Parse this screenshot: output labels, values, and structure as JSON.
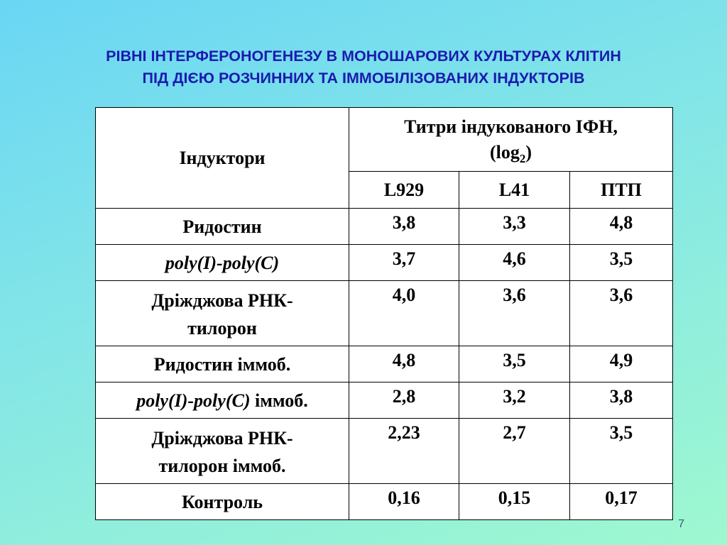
{
  "title": {
    "line1": "РІВНІ ІНТЕРФЕРОНОГЕНЕЗУ В МОНОШАРОВИХ КУЛЬТУРАХ КЛІТИН",
    "line2": "ПІД ДІЄЮ РОЗЧИННИХ ТА ІММОБІЛІЗОВАНИХ ІНДУКТОРІВ"
  },
  "table": {
    "header_inductors": "Індуктори",
    "header_titers_line1": "Титри індукованого ІФН,",
    "header_titers_open": "(log",
    "header_titers_sub": "2",
    "header_titers_close": ")",
    "columns": [
      "L929",
      "L41",
      "ПТП"
    ],
    "rows": [
      {
        "label": "Ридостин",
        "values": [
          "3,8",
          "3,3",
          "4,8"
        ]
      },
      {
        "label_italic": "poly(I)-poly(C)",
        "values": [
          "3,7",
          "4,6",
          "3,5"
        ]
      },
      {
        "label_line1": "Дріжджова РНК-",
        "label_line2": "тилорон",
        "values": [
          "4,0",
          "3,6",
          "3,6"
        ]
      },
      {
        "label": "Ридостин іммоб.",
        "values": [
          "4,8",
          "3,5",
          "4,9"
        ]
      },
      {
        "label_italic": "poly(I)-poly(C)",
        "label_suffix": " іммоб.",
        "values": [
          "2,8",
          "3,2",
          "3,8"
        ]
      },
      {
        "label_line1": "Дріжджова РНК-",
        "label_line2": "тилорон іммоб.",
        "values": [
          "2,23",
          "2,7",
          "3,5"
        ]
      },
      {
        "label": "Контроль",
        "values": [
          "0,16",
          "0,15",
          "0,17"
        ]
      }
    ]
  },
  "page_number": "7"
}
